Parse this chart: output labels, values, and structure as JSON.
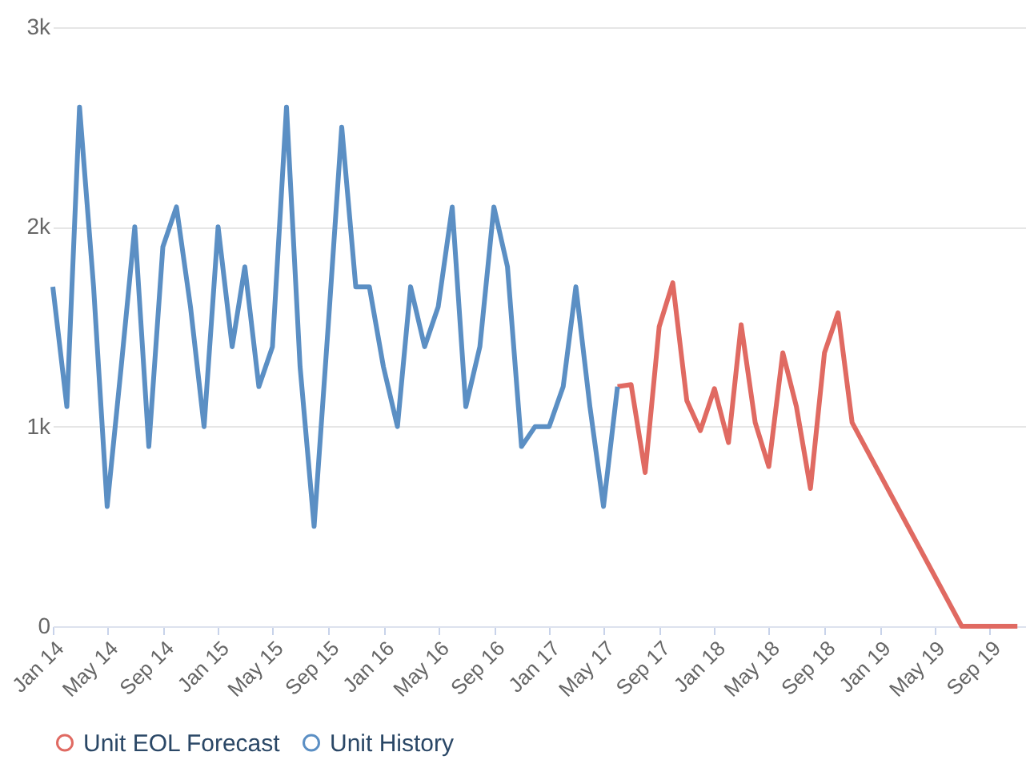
{
  "chart_data": {
    "type": "line",
    "legend": "bottom",
    "grid": "y",
    "marker": "none",
    "line_style": "solid",
    "ylim": [
      0,
      3000
    ],
    "yticks": [
      {
        "value": 0,
        "label": "0"
      },
      {
        "value": 1000,
        "label": "1k"
      },
      {
        "value": 2000,
        "label": "2k"
      },
      {
        "value": 3000,
        "label": "3k"
      }
    ],
    "xlim": [
      "2014-01",
      "2019-11-20"
    ],
    "xticks": [
      {
        "value": "2014-01",
        "label": "Jan 14"
      },
      {
        "value": "2014-05",
        "label": "May 14"
      },
      {
        "value": "2014-09",
        "label": "Sep 14"
      },
      {
        "value": "2015-01",
        "label": "Jan 15"
      },
      {
        "value": "2015-05",
        "label": "May 15"
      },
      {
        "value": "2015-09",
        "label": "Sep 15"
      },
      {
        "value": "2016-01",
        "label": "Jan 16"
      },
      {
        "value": "2016-05",
        "label": "May 16"
      },
      {
        "value": "2016-09",
        "label": "Sep 16"
      },
      {
        "value": "2017-01",
        "label": "Jan 17"
      },
      {
        "value": "2017-05",
        "label": "May 17"
      },
      {
        "value": "2017-09",
        "label": "Sep 17"
      },
      {
        "value": "2018-01",
        "label": "Jan 18"
      },
      {
        "value": "2018-05",
        "label": "May 18"
      },
      {
        "value": "2018-09",
        "label": "Sep 18"
      },
      {
        "value": "2019-01",
        "label": "Jan 19"
      },
      {
        "value": "2019-05",
        "label": "May 19"
      },
      {
        "value": "2019-09",
        "label": "Sep 19"
      }
    ],
    "series": [
      {
        "name": "Unit EOL Forecast",
        "color": "#e06a62",
        "x": [
          "2017-06",
          "2017-07",
          "2017-08",
          "2017-09",
          "2017-10",
          "2017-11",
          "2017-12",
          "2018-01",
          "2018-02",
          "2018-03",
          "2018-04",
          "2018-05",
          "2018-06",
          "2018-07",
          "2018-08",
          "2018-09",
          "2018-10",
          "2018-11",
          "2019-07",
          "2019-11"
        ],
        "values": [
          1200,
          1210,
          770,
          1500,
          1720,
          1130,
          980,
          1190,
          920,
          1510,
          1020,
          800,
          1370,
          1100,
          690,
          1370,
          1570,
          1020,
          0,
          0
        ]
      },
      {
        "name": "Unit History",
        "color": "#5b8fc4",
        "x": [
          "2014-01",
          "2014-02",
          "2014-03",
          "2014-04",
          "2014-05",
          "2014-06",
          "2014-07",
          "2014-08",
          "2014-09",
          "2014-10",
          "2014-11",
          "2014-12",
          "2015-01",
          "2015-02",
          "2015-03",
          "2015-04",
          "2015-05",
          "2015-06",
          "2015-07",
          "2015-08",
          "2015-09",
          "2015-10",
          "2015-11",
          "2015-12",
          "2016-01",
          "2016-02",
          "2016-03",
          "2016-04",
          "2016-05",
          "2016-06",
          "2016-07",
          "2016-08",
          "2016-09",
          "2016-10",
          "2016-11",
          "2016-12",
          "2017-01",
          "2017-02",
          "2017-03",
          "2017-04",
          "2017-05",
          "2017-06"
        ],
        "values": [
          1700,
          1100,
          2600,
          1700,
          600,
          1300,
          2000,
          900,
          1900,
          2100,
          1600,
          1000,
          2000,
          1400,
          1800,
          1200,
          1400,
          2600,
          1300,
          500,
          1500,
          2500,
          1700,
          1700,
          1300,
          1000,
          1700,
          1400,
          1600,
          2100,
          1100,
          1400,
          2100,
          1800,
          900,
          1000,
          1000,
          1200,
          1700,
          1100,
          600,
          1200
        ]
      }
    ]
  }
}
